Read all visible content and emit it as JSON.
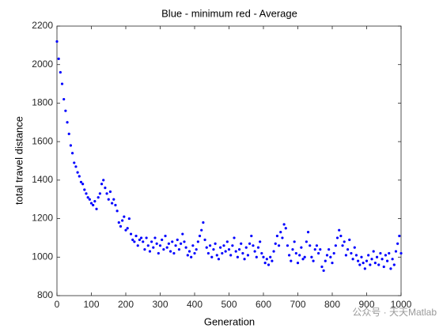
{
  "chart_data": {
    "type": "scatter",
    "title": "Blue - minimum red - Average",
    "x_label": "Generation",
    "y_label": "total travel distance",
    "watermark": "公众号 · 天天Matlab",
    "color": "#0000ff",
    "grid": false,
    "xlim": [
      0,
      1000
    ],
    "xticks": [
      0,
      100,
      200,
      300,
      400,
      500,
      600,
      700,
      800,
      900,
      1000
    ],
    "ylim": [
      800,
      2200
    ],
    "yticks": [
      800,
      1000,
      1200,
      1400,
      1600,
      1800,
      2000,
      2200
    ],
    "x": [
      0,
      5,
      10,
      15,
      20,
      25,
      30,
      35,
      40,
      45,
      50,
      55,
      60,
      65,
      70,
      75,
      80,
      85,
      90,
      95,
      100,
      105,
      110,
      115,
      120,
      125,
      130,
      135,
      140,
      145,
      150,
      155,
      160,
      165,
      170,
      175,
      180,
      185,
      190,
      195,
      200,
      205,
      210,
      215,
      220,
      225,
      230,
      235,
      240,
      245,
      250,
      255,
      260,
      265,
      270,
      275,
      280,
      285,
      290,
      295,
      300,
      305,
      310,
      315,
      320,
      325,
      330,
      335,
      340,
      345,
      350,
      355,
      360,
      365,
      370,
      375,
      380,
      385,
      390,
      395,
      400,
      405,
      410,
      415,
      420,
      425,
      430,
      435,
      440,
      445,
      450,
      455,
      460,
      465,
      470,
      475,
      480,
      485,
      490,
      495,
      500,
      505,
      510,
      515,
      520,
      525,
      530,
      535,
      540,
      545,
      550,
      555,
      560,
      565,
      570,
      575,
      580,
      585,
      590,
      595,
      600,
      605,
      610,
      615,
      620,
      625,
      630,
      635,
      640,
      645,
      650,
      655,
      660,
      665,
      670,
      675,
      680,
      685,
      690,
      695,
      700,
      705,
      710,
      715,
      720,
      725,
      730,
      735,
      740,
      745,
      750,
      755,
      760,
      765,
      770,
      775,
      780,
      785,
      790,
      795,
      800,
      805,
      810,
      815,
      820,
      825,
      830,
      835,
      840,
      845,
      850,
      855,
      860,
      865,
      870,
      875,
      880,
      885,
      890,
      895,
      900,
      905,
      910,
      915,
      920,
      925,
      930,
      935,
      940,
      945,
      950,
      955,
      960,
      965,
      970,
      975,
      980,
      985,
      990,
      995,
      1000
    ],
    "values": [
      2120,
      2030,
      1960,
      1900,
      1820,
      1760,
      1700,
      1640,
      1580,
      1540,
      1490,
      1470,
      1440,
      1420,
      1390,
      1380,
      1350,
      1330,
      1310,
      1300,
      1280,
      1270,
      1290,
      1250,
      1310,
      1330,
      1380,
      1400,
      1360,
      1330,
      1300,
      1340,
      1280,
      1300,
      1270,
      1240,
      1180,
      1160,
      1190,
      1210,
      1140,
      1150,
      1200,
      1120,
      1090,
      1080,
      1110,
      1060,
      1090,
      1100,
      1080,
      1040,
      1100,
      1060,
      1030,
      1080,
      1050,
      1100,
      1070,
      1020,
      1060,
      1090,
      1040,
      1110,
      1050,
      1070,
      1030,
      1080,
      1020,
      1060,
      1090,
      1040,
      1070,
      1120,
      1080,
      1050,
      1010,
      1030,
      1000,
      1060,
      1020,
      1040,
      1080,
      1110,
      1140,
      1180,
      1090,
      1050,
      1020,
      1060,
      1000,
      1040,
      1070,
      1010,
      990,
      1050,
      1020,
      1060,
      1030,
      1080,
      1040,
      1010,
      1060,
      1100,
      1030,
      1000,
      1040,
      1070,
      1020,
      990,
      1050,
      1010,
      1070,
      1110,
      1060,
      1030,
      1000,
      1050,
      1080,
      1020,
      1000,
      970,
      990,
      960,
      1000,
      980,
      1030,
      1070,
      1110,
      1060,
      1130,
      1100,
      1170,
      1150,
      1060,
      1010,
      980,
      1040,
      1080,
      1020,
      970,
      1010,
      1050,
      990,
      1000,
      1080,
      1130,
      1060,
      1000,
      980,
      1040,
      1060,
      1020,
      1040,
      950,
      930,
      980,
      1010,
      1040,
      1000,
      970,
      1020,
      1060,
      1100,
      1140,
      1110,
      1060,
      1080,
      1010,
      1040,
      1090,
      1020,
      990,
      1050,
      1010,
      980,
      960,
      1000,
      970,
      940,
      980,
      1010,
      960,
      990,
      1030,
      970,
      1000,
      960,
      1020,
      990,
      950,
      1010,
      980,
      1020,
      940,
      990,
      960,
      1030,
      1070,
      1110,
      1020
    ]
  }
}
